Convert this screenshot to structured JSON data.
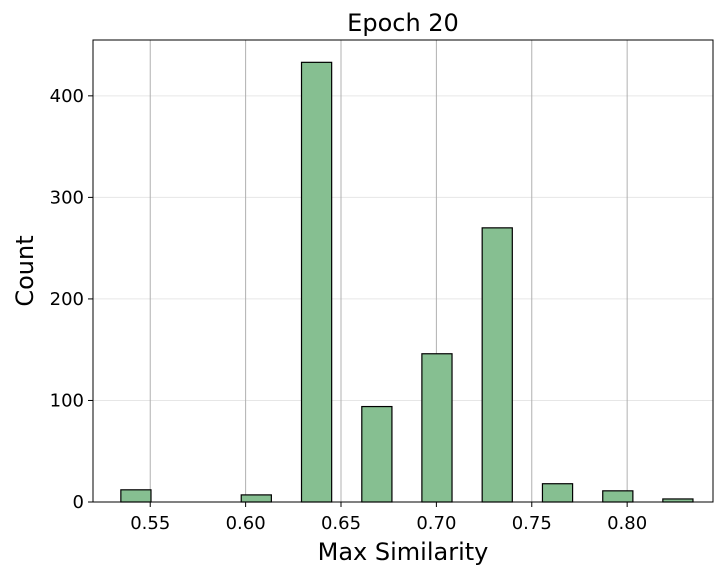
{
  "chart_data": {
    "type": "bar",
    "title": "Epoch 20",
    "xlabel": "Max Similarity",
    "ylabel": "Count",
    "xlim": [
      0.52,
      0.845
    ],
    "ylim": [
      0,
      455
    ],
    "x_ticks": [
      0.55,
      0.6,
      0.65,
      0.7,
      0.75,
      0.8
    ],
    "x_tick_labels": [
      "0.55",
      "0.60",
      "0.65",
      "0.70",
      "0.75",
      "0.80"
    ],
    "y_ticks": [
      0,
      100,
      200,
      300,
      400
    ],
    "y_tick_labels": [
      "0",
      "100",
      "200",
      "300",
      "400"
    ],
    "bin_width": 0.0158,
    "bins": [
      {
        "x": 0.5346,
        "value": 12
      },
      {
        "x": 0.5661,
        "value": 0
      },
      {
        "x": 0.5977,
        "value": 7
      },
      {
        "x": 0.6293,
        "value": 433
      },
      {
        "x": 0.6609,
        "value": 94
      },
      {
        "x": 0.6924,
        "value": 146
      },
      {
        "x": 0.724,
        "value": 270
      },
      {
        "x": 0.7556,
        "value": 18
      },
      {
        "x": 0.7872,
        "value": 11
      },
      {
        "x": 0.8187,
        "value": 3
      }
    ],
    "bar_color": "#86bf91",
    "bar_edge_color": "#000000",
    "grid": {
      "x": true,
      "y": true
    }
  }
}
